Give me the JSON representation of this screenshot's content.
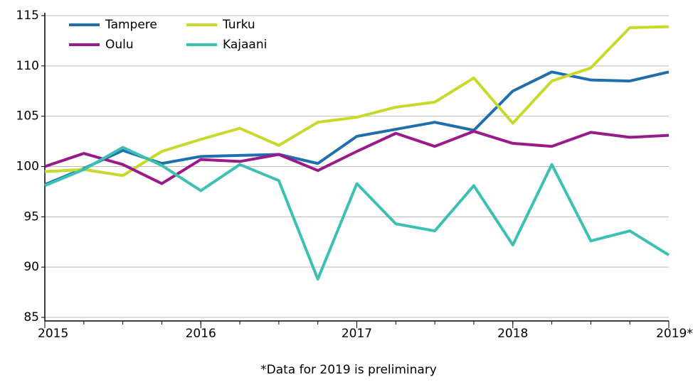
{
  "chart_data": {
    "type": "line",
    "annotation": "*Data for 2019 is preliminary",
    "x": [
      2015,
      2015.25,
      2015.5,
      2015.75,
      2016,
      2016.25,
      2016.5,
      2016.75,
      2017,
      2017.25,
      2017.5,
      2017.75,
      2018,
      2018.25,
      2018.5,
      2018.75,
      2019
    ],
    "series": [
      {
        "name": "Tampere",
        "color": "#1f6fae",
        "values": [
          98.2,
          99.8,
          101.6,
          100.3,
          101.0,
          101.1,
          101.2,
          100.3,
          103.0,
          103.7,
          104.4,
          103.6,
          107.5,
          109.4,
          108.6,
          108.5,
          109.4
        ]
      },
      {
        "name": "Turku",
        "color": "#c8d92c",
        "values": [
          99.5,
          99.7,
          99.1,
          101.5,
          102.7,
          103.8,
          102.1,
          104.4,
          104.9,
          105.9,
          106.4,
          108.8,
          104.3,
          108.5,
          109.8,
          113.8,
          113.9
        ]
      },
      {
        "name": "Oulu",
        "color": "#9b1a8a",
        "values": [
          100.0,
          101.3,
          100.2,
          98.3,
          100.7,
          100.5,
          101.2,
          99.6,
          101.5,
          103.3,
          102.0,
          103.5,
          102.3,
          102.0,
          103.4,
          102.9,
          103.1
        ]
      },
      {
        "name": "Kajaani",
        "color": "#3cc0b4",
        "values": [
          98.1,
          99.7,
          101.9,
          100.1,
          97.6,
          100.2,
          98.6,
          88.8,
          98.3,
          94.3,
          93.6,
          98.1,
          92.2,
          100.2,
          92.6,
          93.6,
          91.2
        ]
      }
    ],
    "xlim": [
      2015,
      2019
    ],
    "xticks": [
      2015,
      2016,
      2017,
      2018,
      {
        "value": 2019,
        "label": "2019*"
      }
    ],
    "ylim": [
      85,
      115
    ],
    "yticks": [
      85,
      90,
      95,
      100,
      105,
      110,
      115
    ],
    "grid": true,
    "legend": "top-left"
  }
}
